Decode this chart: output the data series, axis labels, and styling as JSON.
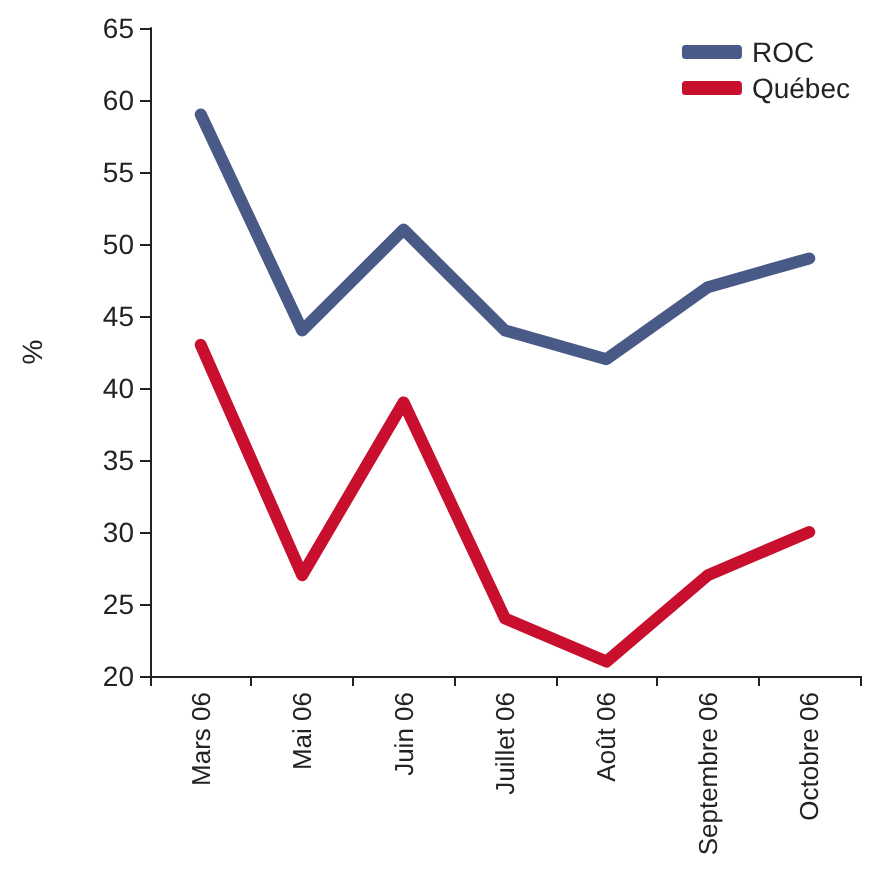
{
  "chart_data": {
    "type": "line",
    "ylabel": "%",
    "categories": [
      "Mars 06",
      "Mai 06",
      "Juin 06",
      "Juillet 06",
      "Août 06",
      "Septembre 06",
      "Octobre 06"
    ],
    "series": [
      {
        "name": "ROC",
        "color": "#4a5a87",
        "values": [
          59,
          44,
          51,
          44,
          42,
          47,
          49
        ]
      },
      {
        "name": "Québec",
        "color": "#c8102e",
        "values": [
          43,
          27,
          39,
          24,
          21,
          27,
          30
        ]
      }
    ],
    "ylim": [
      20,
      65
    ],
    "yticks": [
      20,
      25,
      30,
      35,
      40,
      45,
      50,
      55,
      60,
      65
    ],
    "legend": "top right",
    "marker": "none"
  }
}
